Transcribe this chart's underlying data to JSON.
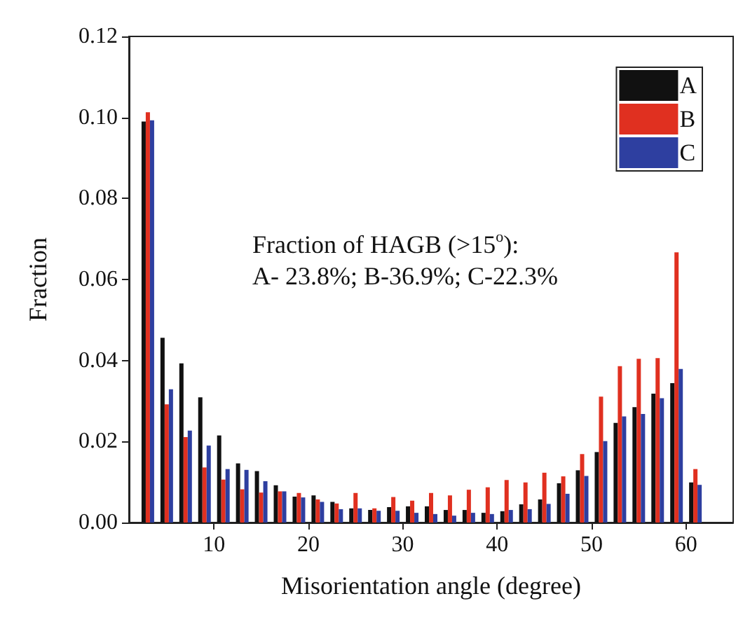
{
  "chart_data": {
    "type": "bar",
    "xlabel": "Misorientation angle (degree)",
    "ylabel": "Fraction",
    "x": [
      3,
      5,
      7,
      9,
      11,
      13,
      15,
      17,
      19,
      21,
      23,
      25,
      27,
      29,
      31,
      33,
      35,
      37,
      39,
      41,
      43,
      45,
      47,
      49,
      51,
      53,
      55,
      57,
      59,
      61
    ],
    "series": [
      {
        "name": "A",
        "color": "#111111",
        "values": [
          0.099,
          0.0456,
          0.0393,
          0.0309,
          0.0215,
          0.0146,
          0.0127,
          0.0092,
          0.0064,
          0.0067,
          0.0051,
          0.0035,
          0.0031,
          0.0038,
          0.004,
          0.004,
          0.0031,
          0.0031,
          0.0024,
          0.0028,
          0.0045,
          0.0057,
          0.0097,
          0.0129,
          0.0174,
          0.0246,
          0.0285,
          0.0318,
          0.0344,
          0.0099
        ]
      },
      {
        "name": "B",
        "color": "#e03020",
        "values": [
          0.1013,
          0.0292,
          0.0211,
          0.0136,
          0.0106,
          0.0082,
          0.0074,
          0.0077,
          0.0073,
          0.0057,
          0.0047,
          0.0073,
          0.0035,
          0.0063,
          0.0054,
          0.0073,
          0.0067,
          0.0081,
          0.0087,
          0.0105,
          0.0099,
          0.0123,
          0.0114,
          0.0169,
          0.0311,
          0.0386,
          0.0404,
          0.0406,
          0.0667,
          0.0132
        ]
      },
      {
        "name": "C",
        "color": "#2e3fa0",
        "values": [
          0.0993,
          0.0329,
          0.0227,
          0.019,
          0.0132,
          0.013,
          0.0102,
          0.0077,
          0.0062,
          0.0051,
          0.0033,
          0.0035,
          0.0029,
          0.0029,
          0.0024,
          0.0021,
          0.0017,
          0.0024,
          0.0021,
          0.0031,
          0.0033,
          0.0046,
          0.0071,
          0.0115,
          0.0201,
          0.0262,
          0.0268,
          0.0307,
          0.0379,
          0.0093
        ]
      }
    ],
    "xlim": [
      1,
      65
    ],
    "xticks": [
      10,
      20,
      30,
      40,
      50,
      60
    ],
    "ylim": [
      0,
      0.12
    ],
    "yticks": [
      {
        "value": 0,
        "label": "0.00"
      },
      {
        "value": 0.02,
        "label": "0.02"
      },
      {
        "value": 0.04,
        "label": "0.04"
      },
      {
        "value": 0.06,
        "label": "0.06"
      },
      {
        "value": 0.08,
        "label": "0.08"
      },
      {
        "value": 0.1,
        "label": "0.10"
      },
      {
        "value": 0.12,
        "label": "0.12"
      }
    ],
    "annotations": [
      "Fraction of HAGB (>15$^{o}$):",
      "A- 23.8%; B-36.9%; C-22.3%"
    ],
    "legend": "top right",
    "grid": false
  }
}
